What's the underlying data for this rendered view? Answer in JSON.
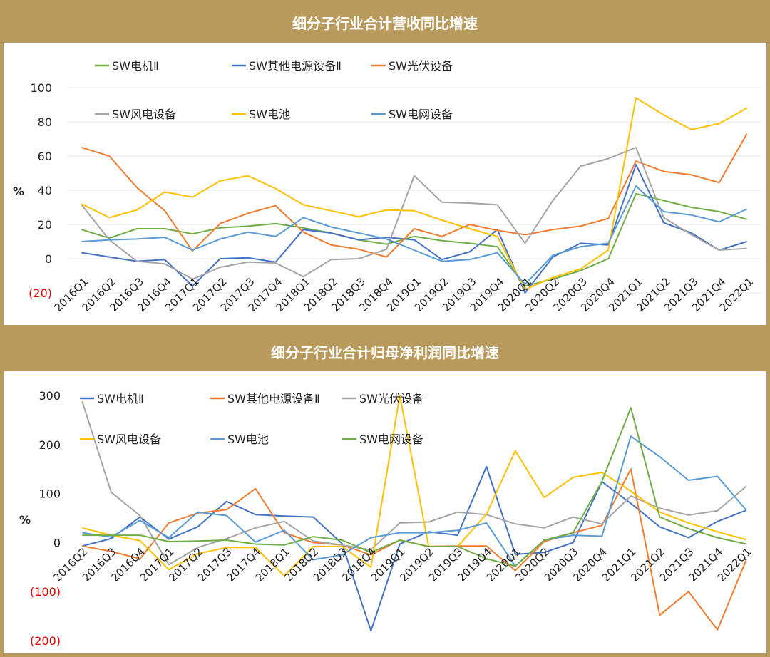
{
  "chart_data": [
    {
      "type": "line",
      "title": "细分子行业合计营收同比增速",
      "ylabel": "%",
      "ylim": [
        -20,
        100
      ],
      "ytick_labels": [
        "(20)",
        "0",
        "20",
        "40",
        "60",
        "80",
        "100"
      ],
      "grid": true,
      "legend": "top-left, 2 rows",
      "categories": [
        "2016Q1",
        "2016Q2",
        "2016Q3",
        "2016Q4",
        "2017Q1",
        "2017Q2",
        "2017Q3",
        "2017Q4",
        "2018Q1",
        "2018Q2",
        "2018Q3",
        "2018Q4",
        "2019Q1",
        "2019Q2",
        "2019Q3",
        "2019Q4",
        "2020Q1",
        "2020Q2",
        "2020Q3",
        "2020Q4",
        "2021Q1",
        "2021Q2",
        "2021Q3",
        "2021Q4",
        "2022Q1"
      ],
      "series": [
        {
          "name": "SW电机Ⅱ",
          "color": "#70ad47",
          "values": [
            17,
            12,
            17.5,
            17.5,
            14.5,
            18,
            19,
            20.5,
            18,
            15,
            11,
            8.5,
            13,
            10.5,
            9,
            7,
            -16,
            -12,
            -7,
            0,
            38,
            34,
            30,
            27.5,
            23
          ]
        },
        {
          "name": "SW其他电源设备Ⅱ",
          "color": "#4472c4",
          "values": [
            3.5,
            1,
            -1.5,
            -0.5,
            -16,
            0,
            0.5,
            -2,
            17,
            15,
            11,
            12.5,
            11,
            -0.5,
            4,
            17,
            -20,
            1,
            9,
            8,
            55,
            21,
            15,
            5,
            10
          ]
        },
        {
          "name": "SW光伏设备",
          "color": "#ed7d31",
          "values": [
            65,
            60,
            41.5,
            28,
            4.5,
            20.5,
            26.5,
            31,
            15.5,
            8,
            5.5,
            1,
            17.5,
            13,
            20,
            16.5,
            14,
            17,
            19,
            23.5,
            57,
            51,
            49,
            44.5,
            73
          ]
        },
        {
          "name": "SW风电设备",
          "color": "#a5a5a5",
          "values": [
            31.5,
            11,
            -1.5,
            -3,
            -12,
            -5,
            -2,
            -2.5,
            -10.5,
            -0.5,
            0,
            5.5,
            48.5,
            33,
            32.5,
            31.5,
            9,
            34,
            54,
            58.5,
            65,
            24,
            14,
            5,
            6
          ]
        },
        {
          "name": "SW电池",
          "color": "#ffc000",
          "values": [
            32,
            24,
            28.5,
            39,
            36,
            45.5,
            48.5,
            41,
            31.5,
            28,
            24.5,
            28.5,
            28,
            22.5,
            17.5,
            13,
            -18,
            -11,
            -6,
            5,
            94,
            84,
            75.5,
            79,
            88
          ]
        },
        {
          "name": "SW电网设备",
          "color": "#5b9bd5",
          "values": [
            10,
            11,
            11.5,
            12.5,
            5,
            11.5,
            15.5,
            13,
            24,
            18.5,
            15,
            11.5,
            5,
            -1.5,
            -0.5,
            3.5,
            -15,
            2,
            7,
            9,
            42.5,
            27.5,
            25.5,
            21.5,
            29
          ]
        }
      ]
    },
    {
      "type": "line",
      "title": "细分子行业合计归母净利润同比增速",
      "ylabel": "%",
      "ylim": [
        -200,
        300
      ],
      "ytick_labels": [
        "(200)",
        "(100)",
        "0",
        "100",
        "200",
        "300"
      ],
      "grid": false,
      "legend": "top-left, 2 rows",
      "categories": [
        "2016Q2",
        "2016Q3",
        "2016Q4",
        "2017Q1",
        "2017Q2",
        "2017Q3",
        "2017Q4",
        "2018Q1",
        "2018Q2",
        "2018Q3",
        "2018Q4",
        "2019Q1",
        "2019Q2",
        "2019Q3",
        "2019Q4",
        "2020Q1",
        "2020Q2",
        "2020Q3",
        "2020Q4",
        "2021Q1",
        "2021Q2",
        "2021Q3",
        "2021Q4",
        "2022Q1"
      ],
      "series": [
        {
          "name": "SW电机Ⅱ",
          "color": "#4472c4",
          "values": [
            -7,
            8,
            52,
            7,
            32,
            84,
            57,
            54,
            52,
            -2,
            -180,
            -3,
            22,
            15,
            155,
            -24,
            -20,
            0,
            124,
            80,
            32,
            10,
            43,
            66
          ]
        },
        {
          "name": "SW其他电源设备Ⅱ",
          "color": "#ed7d31",
          "values": [
            -7,
            -18,
            -33,
            40,
            60,
            67,
            110,
            20,
            0,
            -5,
            -25,
            5,
            -8,
            -7,
            -7,
            -57,
            2,
            20,
            35,
            150,
            -148,
            -100,
            -178,
            -35
          ]
        },
        {
          "name": "SW光伏设备",
          "color": "#a5a5a5",
          "values": [
            288,
            103,
            55,
            -45,
            -10,
            8,
            30,
            43,
            3,
            -5,
            -15,
            40,
            42,
            62,
            57,
            38,
            30,
            52,
            38,
            95,
            70,
            56,
            65,
            115
          ]
        },
        {
          "name": "SW风电设备",
          "color": "#ffc000",
          "values": [
            30,
            15,
            4,
            -55,
            -23,
            -10,
            -10,
            -68,
            -8,
            -8,
            -50,
            300,
            -8,
            -8,
            58,
            187,
            92,
            133,
            143,
            105,
            62,
            40,
            22,
            6
          ]
        },
        {
          "name": "SW电池",
          "color": "#5b9bd5",
          "values": [
            20,
            11,
            45,
            10,
            62,
            55,
            1,
            25,
            -35,
            -25,
            10,
            20,
            20,
            25,
            40,
            -48,
            5,
            15,
            13,
            217,
            175,
            127,
            135,
            66
          ]
        },
        {
          "name": "SW电网设备",
          "color": "#70ad47",
          "values": [
            15,
            15,
            15,
            2,
            3,
            5,
            -3,
            -5,
            12,
            5,
            -20,
            5,
            -8,
            -8,
            -33,
            -48,
            5,
            20,
            125,
            275,
            52,
            28,
            10,
            -3
          ]
        }
      ]
    }
  ]
}
